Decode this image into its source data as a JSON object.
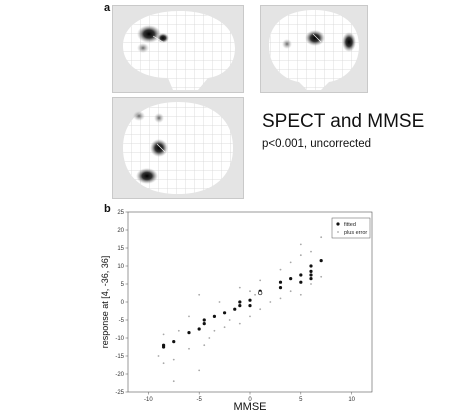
{
  "figure": {
    "label_a": "a",
    "label_b": "b",
    "annotation_title": "SPECT and MMSE",
    "annotation_subtitle": "p<0.001, uncorrected"
  },
  "chart_data": {
    "type": "scatter",
    "xlabel": "MMSE",
    "ylabel": "response at [4, -36, 36]",
    "xlim": [
      -12,
      12
    ],
    "ylim": [
      -25,
      25
    ],
    "xticks": [
      -10,
      -5,
      0,
      5,
      10
    ],
    "yticks": [
      -25,
      -20,
      -15,
      -10,
      -5,
      0,
      5,
      10,
      15,
      20,
      25
    ],
    "grid": false,
    "legend_position": "top-right",
    "series": [
      {
        "name": "fitted",
        "marker": "filled-dot",
        "color": "#111111",
        "points": [
          [
            -8.5,
            -12.5
          ],
          [
            -8.5,
            -12.0
          ],
          [
            -7.5,
            -11.0
          ],
          [
            -6,
            -8.5
          ],
          [
            -5,
            -7.5
          ],
          [
            -4.5,
            -6.0
          ],
          [
            -4.5,
            -5.0
          ],
          [
            -3.5,
            -4.0
          ],
          [
            -2.5,
            -3.0
          ],
          [
            -1.5,
            -2.0
          ],
          [
            -1.0,
            -1.0
          ],
          [
            -1.0,
            0.0
          ],
          [
            0,
            -1.0
          ],
          [
            0,
            0.5
          ],
          [
            1,
            3.0
          ],
          [
            3,
            4.0
          ],
          [
            3,
            5.5
          ],
          [
            4,
            6.5
          ],
          [
            5,
            5.5
          ],
          [
            5,
            7.5
          ],
          [
            6,
            6.5
          ],
          [
            6,
            7.5
          ],
          [
            6,
            8.5
          ],
          [
            6,
            10.0
          ],
          [
            7,
            11.5
          ]
        ]
      },
      {
        "name": "plus error",
        "marker": "small-dot",
        "color": "#a8a8a8",
        "points": [
          [
            -8.5,
            -17
          ],
          [
            -8.5,
            -9
          ],
          [
            -7.5,
            -16
          ],
          [
            -7,
            -8
          ],
          [
            -6,
            -13
          ],
          [
            -6,
            -4
          ],
          [
            -5,
            -19
          ],
          [
            -5,
            2
          ],
          [
            -4.5,
            -12
          ],
          [
            -4,
            -10
          ],
          [
            -3.5,
            -8
          ],
          [
            -3,
            0
          ],
          [
            -2.5,
            -7
          ],
          [
            -2,
            -5
          ],
          [
            -1,
            -6
          ],
          [
            -1,
            4
          ],
          [
            0,
            -4
          ],
          [
            0,
            3
          ],
          [
            0.5,
            2
          ],
          [
            1,
            6
          ],
          [
            2,
            0
          ],
          [
            3,
            1
          ],
          [
            3,
            9
          ],
          [
            4,
            3
          ],
          [
            4,
            11
          ],
          [
            5,
            2
          ],
          [
            5,
            13
          ],
          [
            5,
            16
          ],
          [
            6,
            5
          ],
          [
            6,
            14
          ],
          [
            7,
            7
          ],
          [
            7,
            18
          ],
          [
            -7.5,
            -22
          ],
          [
            1,
            -2
          ],
          [
            -9,
            -15
          ]
        ]
      }
    ],
    "open_points": [
      [
        1,
        2.5
      ]
    ]
  }
}
